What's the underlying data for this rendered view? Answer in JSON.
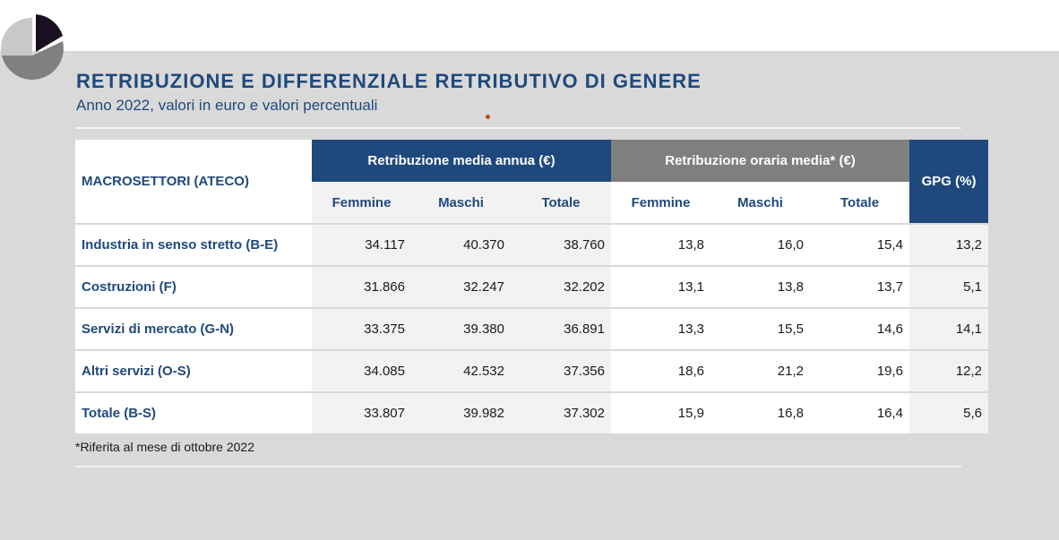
{
  "header": {
    "title": "RETRIBUZIONE E DIFFERENZIALE RETRIBUTIVO DI GENERE",
    "subtitle": "Anno 2022, valori in euro e valori percentuali"
  },
  "table": {
    "row_header": "MACROSETTORI (ATECO)",
    "group_annual": "Retribuzione media annua (€)",
    "group_hourly": "Retribuzione oraria media* (€)",
    "group_gpg": "GPG (%)",
    "sub_headers": [
      "Femmine",
      "Maschi",
      "Totale",
      "Femmine",
      "Maschi",
      "Totale"
    ],
    "rows": [
      {
        "label": "Industria in senso stretto (B-E)",
        "annual": [
          "34.117",
          "40.370",
          "38.760"
        ],
        "hourly": [
          "13,8",
          "16,0",
          "15,4"
        ],
        "gpg": "13,2"
      },
      {
        "label": "Costruzioni (F)",
        "annual": [
          "31.866",
          "32.247",
          "32.202"
        ],
        "hourly": [
          "13,1",
          "13,8",
          "13,7"
        ],
        "gpg": "5,1"
      },
      {
        "label": "Servizi di mercato (G-N)",
        "annual": [
          "33.375",
          "39.380",
          "36.891"
        ],
        "hourly": [
          "13,3",
          "15,5",
          "14,6"
        ],
        "gpg": "14,1"
      },
      {
        "label": "Altri servizi (O-S)",
        "annual": [
          "34.085",
          "42.532",
          "37.356"
        ],
        "hourly": [
          "18,6",
          "21,2",
          "19,6"
        ],
        "gpg": "12,2"
      },
      {
        "label": "Totale (B-S)",
        "annual": [
          "33.807",
          "39.982",
          "37.302"
        ],
        "hourly": [
          "15,9",
          "16,8",
          "16,4"
        ],
        "gpg": "5,6"
      }
    ]
  },
  "footnote": "*Riferita al mese di ottobre 2022",
  "colors": {
    "accent_blue": "#1f497d",
    "header_gray": "#7f7f7f",
    "slide_background": "#d9d9d9",
    "cell_light": "#f2f2f2"
  },
  "icons": {
    "logo": "pie-chart-logo"
  }
}
